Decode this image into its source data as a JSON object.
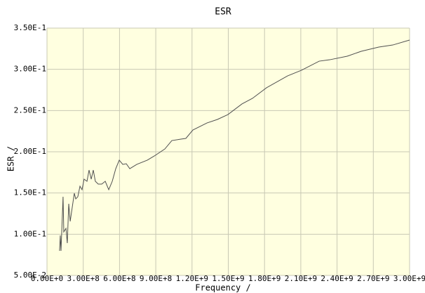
{
  "chart_data": {
    "type": "line",
    "title": "ESR",
    "x_label": "Frequency /",
    "y_label": "ESR /",
    "xlim": [
      0,
      3000000000
    ],
    "ylim": [
      0.05,
      0.35
    ],
    "xticks": [
      {
        "value": 0,
        "label": "0.00E+0"
      },
      {
        "value": 300000000,
        "label": "3.00E+8"
      },
      {
        "value": 600000000,
        "label": "6.00E+8"
      },
      {
        "value": 900000000,
        "label": "9.00E+8"
      },
      {
        "value": 1200000000,
        "label": "1.20E+9"
      },
      {
        "value": 1500000000,
        "label": "1.50E+9"
      },
      {
        "value": 1800000000,
        "label": "1.80E+9"
      },
      {
        "value": 2100000000,
        "label": "2.10E+9"
      },
      {
        "value": 2400000000,
        "label": "2.40E+9"
      },
      {
        "value": 2700000000,
        "label": "2.70E+9"
      },
      {
        "value": 3000000000,
        "label": "3.00E+9"
      }
    ],
    "yticks": [
      {
        "value": 0.05,
        "label": "5.00E-2"
      },
      {
        "value": 0.1,
        "label": "1.00E-1"
      },
      {
        "value": 0.15,
        "label": "1.50E-1"
      },
      {
        "value": 0.2,
        "label": "2.00E-1"
      },
      {
        "value": 0.25,
        "label": "2.50E-1"
      },
      {
        "value": 0.3,
        "label": "3.00E-1"
      },
      {
        "value": 0.35,
        "label": "3.50E-1"
      }
    ],
    "grid": true,
    "background": "#ffffe0",
    "series": [
      {
        "color": "#505050",
        "x": [
          104000000,
          110000000,
          116000000,
          133000000,
          139000000,
          157000000,
          168000000,
          180000000,
          192000000,
          209000000,
          226000000,
          238000000,
          255000000,
          273000000,
          290000000,
          307000000,
          331000000,
          348000000,
          366000000,
          383000000,
          400000000,
          424000000,
          453000000,
          482000000,
          511000000,
          540000000,
          569000000,
          598000000,
          627000000,
          656000000,
          685000000,
          743000000,
          830000000,
          888000000,
          975000000,
          1033000000,
          1108000000,
          1149000000,
          1207000000,
          1323000000,
          1410000000,
          1497000000,
          1613000000,
          1700000000,
          1816000000,
          1990000000,
          2106000000,
          2252000000,
          2339000000,
          2484000000,
          2600000000,
          2745000000,
          2861000000,
          3000000000
        ],
        "values": [
          0.0798,
          0.0986,
          0.0798,
          0.1454,
          0.1028,
          0.1071,
          0.0892,
          0.1369,
          0.1156,
          0.1327,
          0.1497,
          0.1429,
          0.1454,
          0.1582,
          0.154,
          0.1668,
          0.1642,
          0.1778,
          0.1668,
          0.1778,
          0.1642,
          0.1608,
          0.1608,
          0.1642,
          0.154,
          0.1642,
          0.1795,
          0.1898,
          0.1847,
          0.1855,
          0.1795,
          0.1847,
          0.1898,
          0.1949,
          0.2034,
          0.2136,
          0.2153,
          0.2162,
          0.2264,
          0.2349,
          0.2392,
          0.2451,
          0.258,
          0.2648,
          0.2776,
          0.292,
          0.2989,
          0.3099,
          0.3116,
          0.3159,
          0.3219,
          0.327,
          0.3295,
          0.3355
        ]
      }
    ]
  }
}
